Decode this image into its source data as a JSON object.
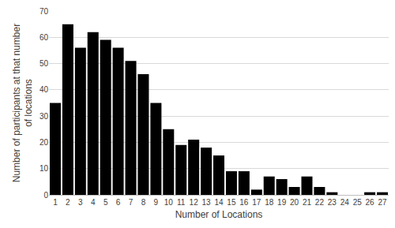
{
  "chart_data": {
    "type": "bar",
    "x_label": "Number of Locations",
    "y_label": "Number of participants at that number of locations",
    "categories": [
      1,
      2,
      3,
      4,
      5,
      6,
      7,
      8,
      9,
      10,
      11,
      12,
      13,
      14,
      15,
      16,
      17,
      18,
      19,
      20,
      21,
      22,
      23,
      24,
      25,
      26,
      27
    ],
    "values": [
      35,
      65,
      56,
      62,
      59,
      56,
      51,
      46,
      35,
      25,
      19,
      21,
      18,
      15,
      9,
      9,
      2,
      7,
      6,
      3,
      7,
      3,
      1,
      0,
      0,
      1,
      1
    ],
    "color": "#000000",
    "ylim": [
      0,
      70
    ],
    "yticks": [
      0,
      10,
      20,
      30,
      40,
      50,
      60,
      70
    ],
    "grid": true
  }
}
